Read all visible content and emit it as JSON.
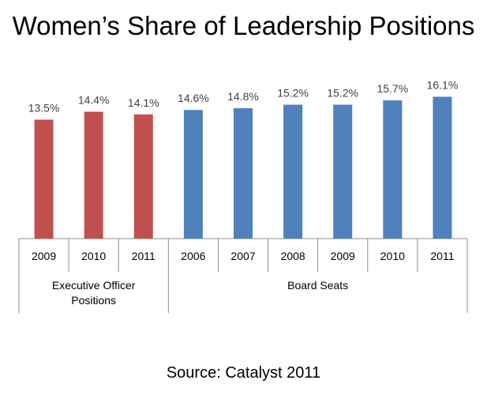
{
  "title": "Women’s Share of Leadership Positions",
  "source": "Source:  Catalyst 2011",
  "chart_data": {
    "type": "bar",
    "title": "Women’s Share of Leadership Positions",
    "xlabel": "",
    "ylabel": "",
    "ylim": [
      0,
      20
    ],
    "grid": false,
    "legend": "none",
    "groups": [
      {
        "label": "Executive Officer Positions",
        "color": "#C0504D",
        "categories": [
          "2009",
          "2010",
          "2011"
        ],
        "values": [
          13.5,
          14.4,
          14.1
        ],
        "data_labels": [
          "13.5%",
          "14.4%",
          "14.1%"
        ]
      },
      {
        "label": "Board Seats",
        "color": "#4F81BD",
        "categories": [
          "2006",
          "2007",
          "2008",
          "2009",
          "2010",
          "2011"
        ],
        "values": [
          14.6,
          14.8,
          15.2,
          15.2,
          15.7,
          16.1
        ],
        "data_labels": [
          "14.6%",
          "14.8%",
          "15.2%",
          "15.2%",
          "15.7%",
          "16.1%"
        ]
      }
    ]
  }
}
